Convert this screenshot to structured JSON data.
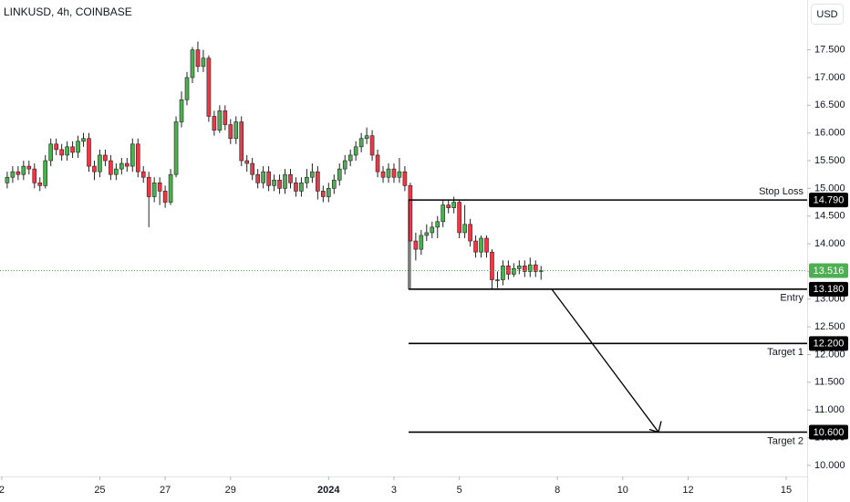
{
  "chart_data": {
    "type": "candlestick",
    "title": "LINKUSD, 4h, COINBASE",
    "currency": "USD",
    "up_color": "#4caf50",
    "down_color": "#f23645",
    "grid": false,
    "xlim": [
      -1.3,
      591.4
    ],
    "ylim": [
      9.8,
      18.4
    ],
    "xticks": [
      {
        "value": 0,
        "label": "2"
      },
      {
        "value": 72,
        "label": "25"
      },
      {
        "value": 120,
        "label": "27"
      },
      {
        "value": 168,
        "label": "29"
      },
      {
        "value": 240,
        "label": "2024"
      },
      {
        "value": 288,
        "label": "3"
      },
      {
        "value": 336,
        "label": "5"
      },
      {
        "value": 408,
        "label": "8"
      },
      {
        "value": 456,
        "label": "10"
      },
      {
        "value": 504,
        "label": "12"
      },
      {
        "value": 576,
        "label": "15"
      }
    ],
    "yticks": [
      {
        "value": 10,
        "label": "10.000"
      },
      {
        "value": 10.5,
        "label": "10.500"
      },
      {
        "value": 11,
        "label": "11.000"
      },
      {
        "value": 11.5,
        "label": "11.500"
      },
      {
        "value": 12,
        "label": "12.000"
      },
      {
        "value": 12.5,
        "label": "12.500"
      },
      {
        "value": 13,
        "label": "13.000"
      },
      {
        "value": 13.5,
        "label": "13.500"
      },
      {
        "value": 14,
        "label": "14.000"
      },
      {
        "value": 14.5,
        "label": "14.500"
      },
      {
        "value": 15,
        "label": "15.000"
      },
      {
        "value": 15.5,
        "label": "15.500"
      },
      {
        "value": 16,
        "label": "16.000"
      },
      {
        "value": 16.5,
        "label": "16.500"
      },
      {
        "value": 17,
        "label": "17.000"
      },
      {
        "value": 17.5,
        "label": "17.500"
      }
    ],
    "x": [
      4,
      8,
      12,
      16,
      20,
      24,
      28,
      32,
      36,
      40,
      44,
      48,
      52,
      56,
      60,
      64,
      68,
      72,
      76,
      80,
      84,
      88,
      92,
      96,
      100,
      104,
      108,
      112,
      116,
      120,
      124,
      128,
      132,
      136,
      140,
      144,
      148,
      152,
      156,
      160,
      164,
      168,
      172,
      176,
      180,
      184,
      188,
      192,
      196,
      200,
      204,
      208,
      212,
      216,
      220,
      224,
      228,
      232,
      236,
      240,
      244,
      248,
      252,
      256,
      260,
      264,
      268,
      272,
      276,
      280,
      284,
      288,
      292,
      296,
      300,
      304,
      308,
      312,
      316,
      320,
      324,
      328,
      332,
      336,
      340,
      344,
      348,
      352,
      356,
      360,
      364,
      368,
      372,
      376,
      380,
      384,
      388,
      392,
      396
    ],
    "open": [
      15.1,
      15.2,
      15.3,
      15.25,
      15.4,
      15.35,
      15.1,
      15.05,
      15.5,
      15.8,
      15.7,
      15.6,
      15.75,
      15.65,
      15.85,
      15.9,
      15.4,
      15.3,
      15.6,
      15.5,
      15.25,
      15.35,
      15.45,
      15.4,
      15.8,
      15.3,
      15.2,
      14.85,
      15.1,
      14.95,
      14.75,
      15.25,
      16.2,
      16.6,
      17.0,
      17.5,
      17.2,
      17.35,
      16.3,
      16.05,
      16.4,
      16.15,
      15.9,
      16.2,
      15.5,
      15.45,
      15.25,
      15.1,
      15.3,
      15.05,
      15.15,
      15.0,
      15.25,
      15.1,
      14.95,
      15.1,
      15.2,
      15.3,
      14.95,
      14.85,
      15.0,
      15.15,
      15.35,
      15.5,
      15.6,
      15.75,
      15.9,
      15.95,
      15.6,
      15.3,
      15.2,
      15.35,
      15.2,
      15.3,
      15.05,
      14.05,
      13.9,
      14.15,
      14.2,
      14.3,
      14.4,
      14.7,
      14.65,
      14.75,
      14.2,
      14.35,
      14.05,
      13.85,
      14.1,
      13.85,
      13.35,
      13.35,
      13.6,
      13.45,
      13.55,
      13.6,
      13.5,
      13.62,
      13.5
    ],
    "high": [
      15.3,
      15.4,
      15.4,
      15.5,
      15.5,
      15.45,
      15.2,
      15.6,
      15.9,
      15.9,
      15.8,
      15.85,
      15.85,
      15.95,
      16.0,
      16.0,
      15.5,
      15.7,
      15.7,
      15.6,
      15.45,
      15.55,
      15.55,
      15.9,
      15.9,
      15.4,
      15.3,
      15.2,
      15.2,
      15.05,
      15.35,
      16.3,
      16.75,
      17.1,
      17.55,
      17.65,
      17.5,
      17.4,
      16.4,
      16.5,
      16.5,
      16.25,
      16.3,
      16.3,
      15.6,
      15.55,
      15.35,
      15.4,
      15.4,
      15.25,
      15.25,
      15.35,
      15.35,
      15.2,
      15.2,
      15.35,
      15.45,
      15.4,
      15.05,
      15.1,
      15.25,
      15.45,
      15.6,
      15.7,
      15.85,
      16.0,
      16.1,
      16.05,
      15.7,
      15.4,
      15.45,
      15.45,
      15.55,
      15.4,
      15.1,
      14.2,
      14.25,
      14.35,
      14.4,
      14.5,
      14.8,
      14.8,
      14.85,
      14.8,
      14.7,
      14.45,
      14.15,
      14.15,
      14.15,
      13.9,
      13.5,
      13.7,
      13.7,
      13.65,
      13.7,
      13.7,
      13.75,
      13.7,
      13.6
    ],
    "low": [
      15.0,
      15.1,
      15.15,
      15.15,
      15.25,
      15.0,
      14.95,
      15.0,
      15.4,
      15.6,
      15.5,
      15.5,
      15.55,
      15.55,
      15.75,
      15.3,
      15.15,
      15.2,
      15.4,
      15.15,
      15.15,
      15.25,
      15.3,
      15.3,
      15.2,
      15.1,
      14.3,
      14.75,
      14.7,
      14.65,
      14.7,
      15.2,
      16.1,
      16.5,
      16.9,
      17.1,
      17.1,
      16.2,
      15.95,
      16.0,
      16.05,
      15.8,
      15.8,
      15.4,
      15.3,
      15.15,
      15.0,
      15.0,
      14.95,
      14.95,
      14.9,
      14.9,
      15.0,
      14.85,
      14.85,
      15.0,
      15.1,
      14.8,
      14.75,
      14.75,
      14.9,
      15.05,
      15.25,
      15.4,
      15.5,
      15.65,
      15.8,
      15.5,
      15.2,
      15.1,
      15.1,
      15.1,
      15.1,
      14.95,
      13.18,
      13.7,
      13.8,
      14.05,
      14.1,
      14.1,
      14.3,
      14.55,
      14.55,
      14.1,
      14.1,
      13.95,
      13.75,
      13.75,
      13.75,
      13.18,
      13.2,
      13.25,
      13.35,
      13.4,
      13.45,
      13.4,
      13.4,
      13.4,
      13.35
    ],
    "close": [
      15.2,
      15.3,
      15.25,
      15.4,
      15.35,
      15.1,
      15.05,
      15.5,
      15.8,
      15.7,
      15.6,
      15.75,
      15.65,
      15.85,
      15.9,
      15.4,
      15.3,
      15.6,
      15.5,
      15.25,
      15.35,
      15.45,
      15.4,
      15.8,
      15.3,
      15.2,
      14.85,
      15.1,
      14.95,
      14.75,
      15.25,
      16.2,
      16.6,
      17.0,
      17.5,
      17.2,
      17.35,
      16.3,
      16.05,
      16.4,
      16.15,
      15.9,
      16.2,
      15.5,
      15.45,
      15.25,
      15.1,
      15.3,
      15.05,
      15.15,
      15.0,
      15.25,
      15.1,
      14.95,
      15.1,
      15.2,
      15.3,
      14.95,
      14.85,
      15.0,
      15.15,
      15.35,
      15.5,
      15.6,
      15.75,
      15.9,
      15.95,
      15.6,
      15.3,
      15.2,
      15.35,
      15.2,
      15.3,
      15.05,
      14.05,
      13.9,
      14.15,
      14.2,
      14.3,
      14.4,
      14.7,
      14.65,
      14.75,
      14.2,
      14.35,
      14.05,
      13.85,
      14.1,
      13.85,
      13.35,
      13.35,
      13.6,
      13.45,
      13.55,
      13.6,
      13.5,
      13.62,
      13.5,
      13.52
    ],
    "current_price": {
      "value": 13.516,
      "color": "#4caf50"
    },
    "levels": [
      {
        "label": "Stop Loss",
        "value": 14.79,
        "value_label": "14.790"
      },
      {
        "label": "Entry",
        "value": 13.18,
        "value_label": "13.180"
      },
      {
        "label": "Target 1",
        "value": 12.2,
        "value_label": "12.200"
      },
      {
        "label": "Target 2",
        "value": 10.6,
        "value_label": "10.600"
      }
    ]
  }
}
